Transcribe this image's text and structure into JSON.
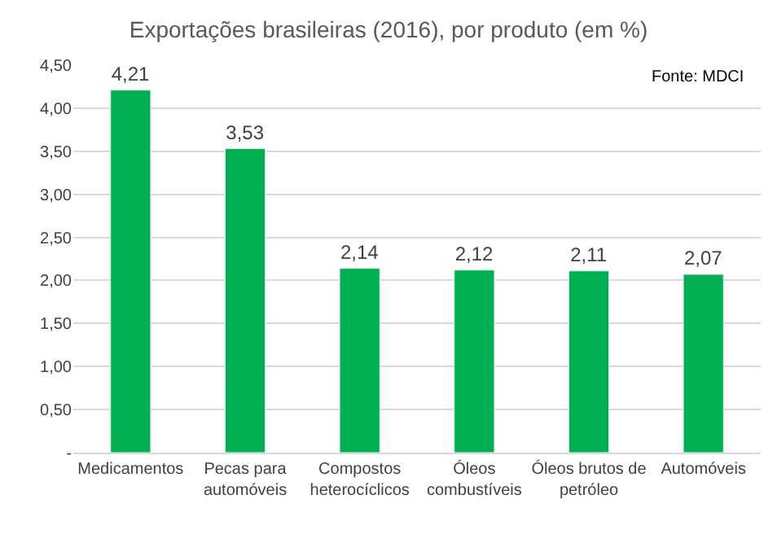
{
  "chart_data": {
    "type": "bar",
    "title": "Exportações brasileiras (2016), por produto (em %)",
    "categories": [
      "Medicamentos",
      "Pecas para\nautomóveis",
      "Compostos\nheterocíclicos",
      "Óleos\ncombustíveis",
      "Óleos brutos de\npetróleo",
      "Automóveis"
    ],
    "values": [
      4.21,
      3.53,
      2.14,
      2.12,
      2.11,
      2.07
    ],
    "value_labels": [
      "4,21",
      "3,53",
      "2,14",
      "2,12",
      "2,11",
      "2,07"
    ],
    "color": "#00b050",
    "ylim": [
      0,
      4.5
    ],
    "yticks": [
      {
        "value": 0,
        "label": "-"
      },
      {
        "value": 0.5,
        "label": "0,50"
      },
      {
        "value": 1,
        "label": "1,00"
      },
      {
        "value": 1.5,
        "label": "1,50"
      },
      {
        "value": 2,
        "label": "2,00"
      },
      {
        "value": 2.5,
        "label": "2,50"
      },
      {
        "value": 3,
        "label": "3,00"
      },
      {
        "value": 3.5,
        "label": "3,50"
      },
      {
        "value": 4,
        "label": "4,00"
      },
      {
        "value": 4.5,
        "label": "4,50"
      }
    ],
    "grid": "y",
    "annotations": [
      "Fonte: MDCI"
    ]
  }
}
